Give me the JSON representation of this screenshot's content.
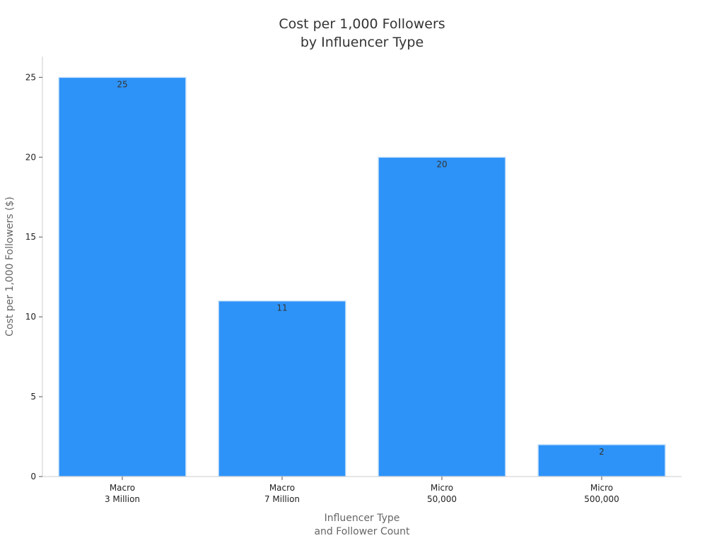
{
  "chart_data": {
    "type": "bar",
    "title": [
      "Cost per 1,000 Followers",
      "by Influencer Type"
    ],
    "xlabel": [
      "Influencer Type",
      "and Follower Count"
    ],
    "ylabel": "Cost per 1,000 Followers ($)",
    "categories": [
      [
        "Macro",
        "3 Million"
      ],
      [
        "Macro",
        "7 Million"
      ],
      [
        "Micro",
        "50,000"
      ],
      [
        "Micro",
        "500,000"
      ]
    ],
    "values": [
      25,
      11,
      20,
      2
    ],
    "data_labels": [
      "25",
      "11",
      "20",
      "2"
    ],
    "yticks": [
      0,
      5,
      10,
      15,
      20,
      25
    ],
    "ylim": [
      0,
      26.3
    ],
    "grid": false,
    "legend": "none",
    "bar_color": "#2e93f8",
    "bar_edge_color": "#d0e6fb"
  }
}
